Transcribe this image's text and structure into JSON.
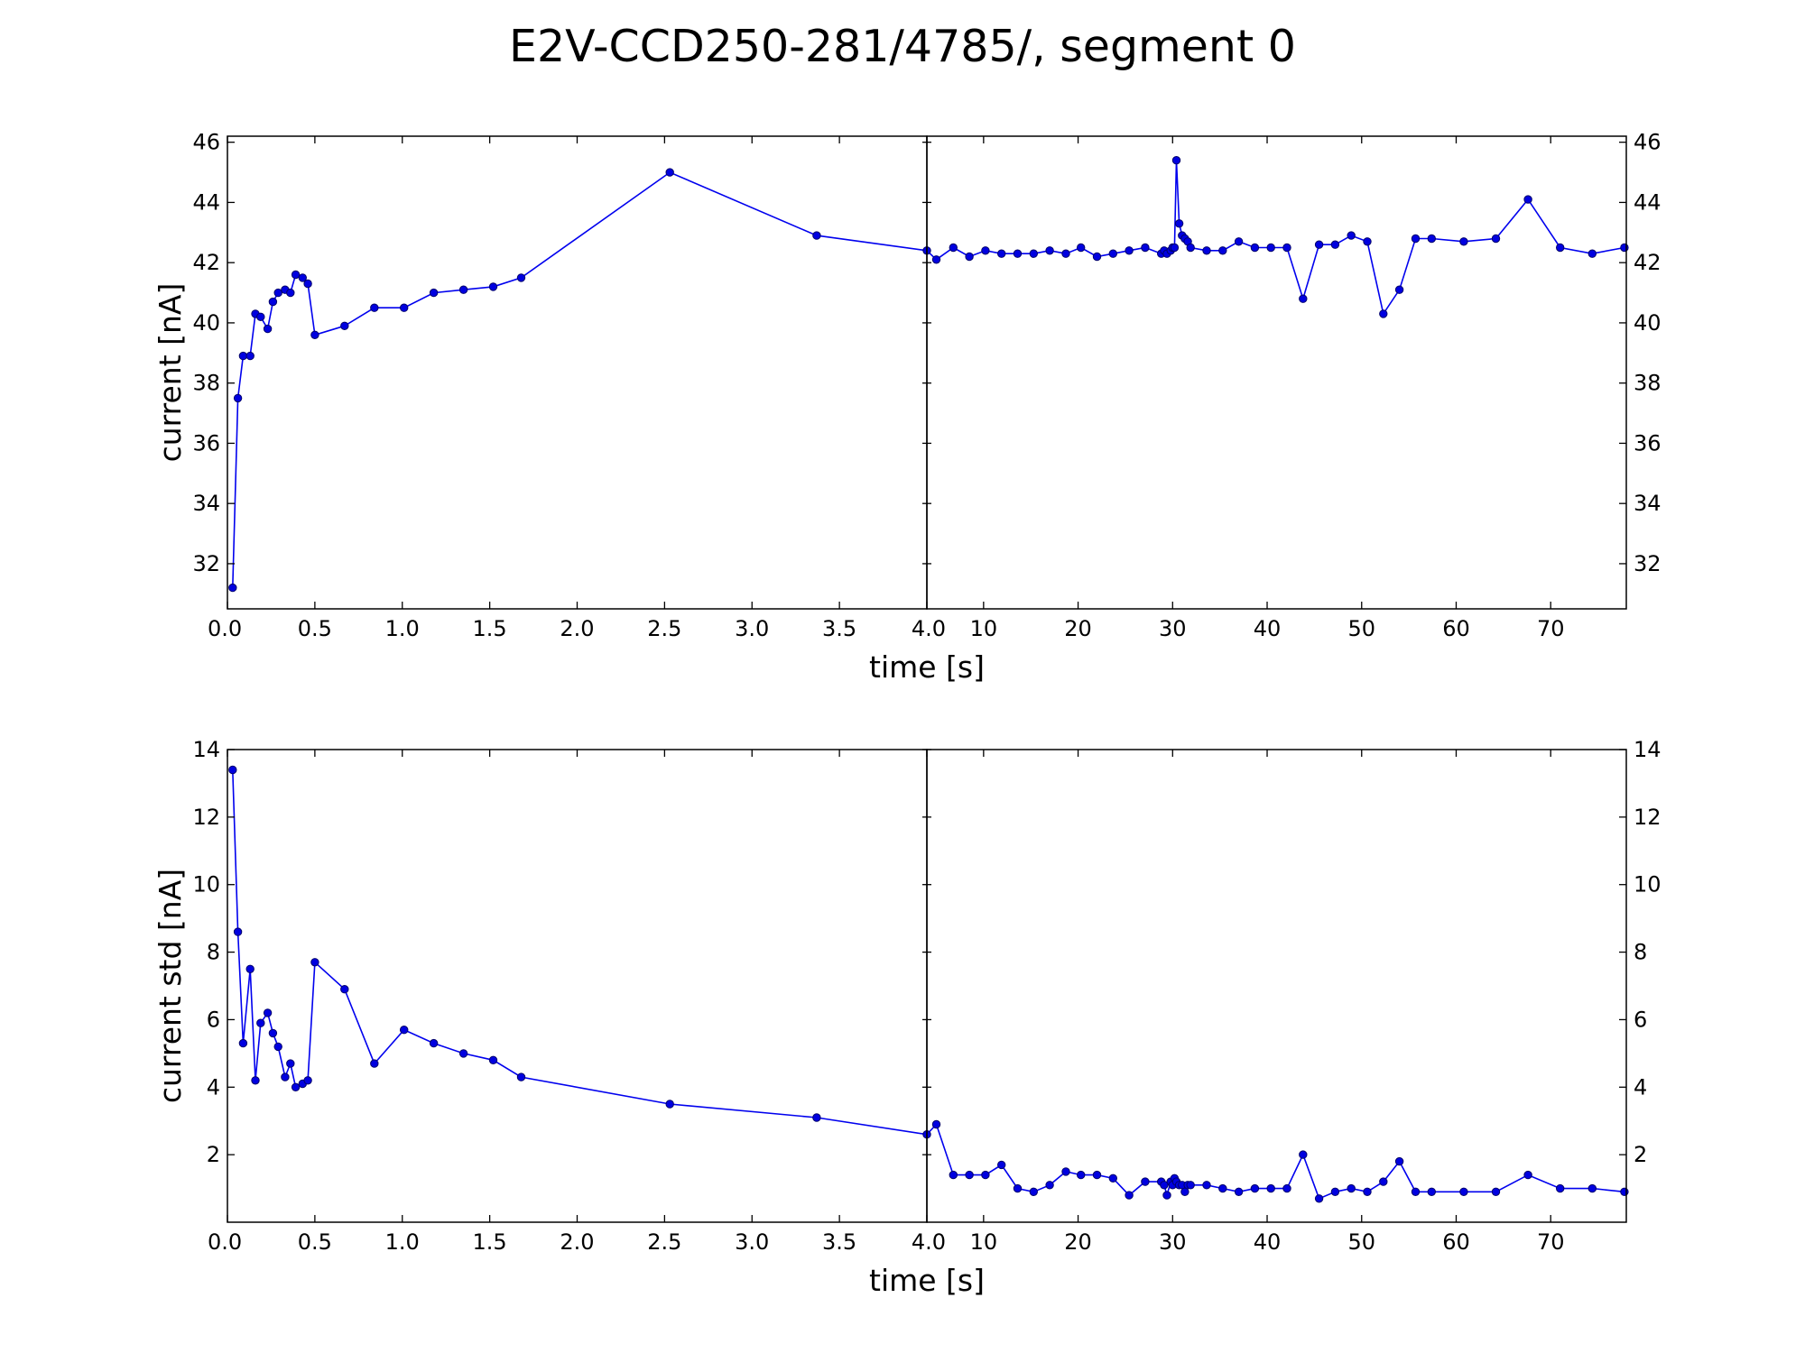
{
  "figure": {
    "title": "E2V-CCD250-281/4785/, segment 0",
    "line_color": "#0000ee",
    "marker_color": "#0000e0"
  },
  "chart_data": [
    {
      "type": "line",
      "title": "E2V-CCD250-281/4785/, segment 0",
      "xlabel": "time [s]",
      "ylabel": "current [nA]",
      "grid": false,
      "left_xlim": [
        0.0,
        4.0
      ],
      "right_xlim": [
        4.0,
        78.0
      ],
      "ylim": [
        30.5,
        46.2
      ],
      "left_xticks": [
        "0.0",
        "0.5",
        "1.0",
        "1.5",
        "2.0",
        "2.5",
        "3.0",
        "3.5",
        "4.0"
      ],
      "right_xticks": [
        "10",
        "20",
        "30",
        "40",
        "50",
        "60",
        "70"
      ],
      "yticks": [
        "32",
        "34",
        "36",
        "38",
        "40",
        "42",
        "44",
        "46"
      ],
      "series": [
        {
          "x": [
            0.03,
            0.06,
            0.09,
            0.13,
            0.16,
            0.19,
            0.23,
            0.26,
            0.29,
            0.33,
            0.36,
            0.39,
            0.43,
            0.46,
            0.5,
            0.67,
            0.84,
            1.01,
            1.18,
            1.35,
            1.52,
            1.68,
            2.53,
            3.37,
            4.0,
            5.0,
            6.8,
            8.5,
            10.2,
            11.9,
            13.6,
            15.3,
            17.0,
            18.7,
            20.3,
            22.0,
            23.7,
            25.4,
            27.1,
            28.8,
            29.1,
            29.4,
            29.8,
            30.0,
            30.2,
            30.4,
            30.7,
            31.0,
            31.3,
            31.6,
            31.9,
            33.6,
            35.3,
            37.0,
            38.7,
            40.4,
            42.1,
            43.8,
            45.5,
            47.2,
            48.9,
            50.6,
            52.3,
            54.0,
            55.7,
            57.4,
            60.8,
            64.2,
            67.6,
            71.0,
            74.4,
            77.8
          ],
          "y": [
            31.2,
            37.5,
            38.9,
            38.9,
            40.3,
            40.2,
            39.8,
            40.7,
            41.0,
            41.1,
            41.0,
            41.6,
            41.5,
            41.3,
            39.6,
            39.9,
            40.5,
            40.5,
            41.0,
            41.1,
            41.2,
            41.5,
            45.0,
            42.9,
            42.4,
            42.1,
            42.5,
            42.2,
            42.4,
            42.3,
            42.3,
            42.3,
            42.4,
            42.3,
            42.5,
            42.2,
            42.3,
            42.4,
            42.5,
            42.3,
            42.4,
            42.3,
            42.4,
            42.5,
            42.5,
            45.4,
            43.3,
            42.9,
            42.8,
            42.7,
            42.5,
            42.4,
            42.4,
            42.7,
            42.5,
            42.5,
            42.5,
            40.8,
            42.6,
            42.6,
            42.9,
            42.7,
            40.3,
            41.1,
            42.8,
            42.8,
            42.7,
            42.8,
            44.1,
            42.5,
            42.3,
            42.5
          ]
        }
      ]
    },
    {
      "type": "line",
      "xlabel": "time [s]",
      "ylabel": "current std [nA]",
      "grid": false,
      "left_xlim": [
        0.0,
        4.0
      ],
      "right_xlim": [
        4.0,
        78.0
      ],
      "ylim": [
        0.0,
        14.0
      ],
      "left_xticks": [
        "0.0",
        "0.5",
        "1.0",
        "1.5",
        "2.0",
        "2.5",
        "3.0",
        "3.5",
        "4.0"
      ],
      "right_xticks": [
        "10",
        "20",
        "30",
        "40",
        "50",
        "60",
        "70"
      ],
      "yticks": [
        "2",
        "4",
        "6",
        "8",
        "10",
        "12",
        "14"
      ],
      "series": [
        {
          "x": [
            0.03,
            0.06,
            0.09,
            0.13,
            0.16,
            0.19,
            0.23,
            0.26,
            0.29,
            0.33,
            0.36,
            0.39,
            0.43,
            0.46,
            0.5,
            0.67,
            0.84,
            1.01,
            1.18,
            1.35,
            1.52,
            1.68,
            2.53,
            3.37,
            4.0,
            5.0,
            6.8,
            8.5,
            10.2,
            11.9,
            13.6,
            15.3,
            17.0,
            18.7,
            20.3,
            22.0,
            23.7,
            25.4,
            27.1,
            28.8,
            29.1,
            29.4,
            29.8,
            30.0,
            30.2,
            30.4,
            30.7,
            31.0,
            31.3,
            31.6,
            31.9,
            33.6,
            35.3,
            37.0,
            38.7,
            40.4,
            42.1,
            43.8,
            45.5,
            47.2,
            48.9,
            50.6,
            52.3,
            54.0,
            55.7,
            57.4,
            60.8,
            64.2,
            67.6,
            71.0,
            74.4,
            77.8
          ],
          "y": [
            13.4,
            8.6,
            5.3,
            7.5,
            4.2,
            5.9,
            6.2,
            5.6,
            5.2,
            4.3,
            4.7,
            4.0,
            4.1,
            4.2,
            7.7,
            6.9,
            4.7,
            5.7,
            5.3,
            5.0,
            4.8,
            4.3,
            3.5,
            3.1,
            2.6,
            2.9,
            1.4,
            1.4,
            1.4,
            1.7,
            1.0,
            0.9,
            1.1,
            1.5,
            1.4,
            1.4,
            1.3,
            0.8,
            1.2,
            1.2,
            1.1,
            0.8,
            1.2,
            1.1,
            1.3,
            1.2,
            1.1,
            1.1,
            0.9,
            1.1,
            1.1,
            1.1,
            1.0,
            0.9,
            1.0,
            1.0,
            1.0,
            2.0,
            0.7,
            0.9,
            1.0,
            0.9,
            1.2,
            1.8,
            0.9,
            0.9,
            0.9,
            0.9,
            1.4,
            1.0,
            1.0,
            0.9
          ]
        }
      ]
    }
  ]
}
